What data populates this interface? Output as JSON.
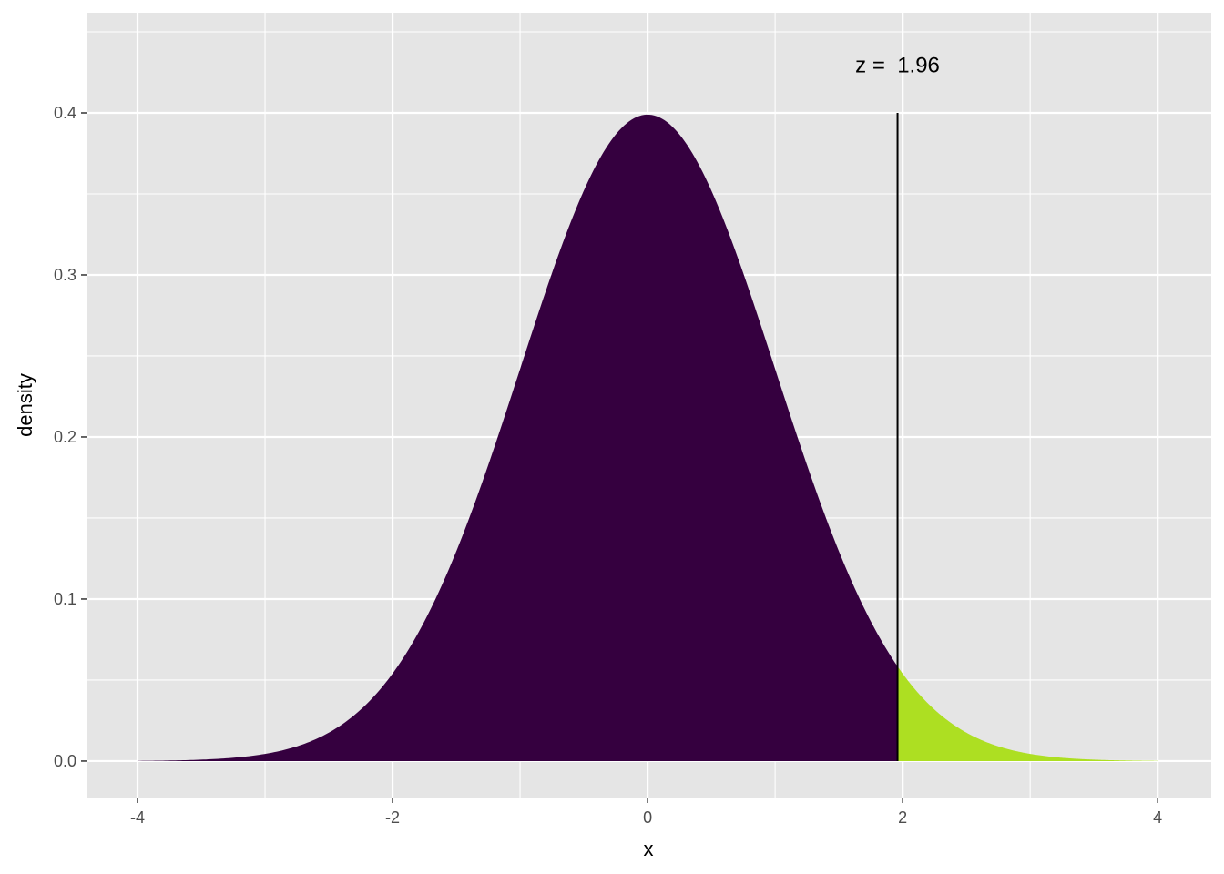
{
  "chart_data": {
    "type": "area",
    "title": "",
    "xlabel": "x",
    "ylabel": "density",
    "xlim": [
      -4.4,
      4.42
    ],
    "ylim": [
      -0.0225,
      0.4618
    ],
    "x_ticks": [
      -4,
      -2,
      0,
      2,
      4
    ],
    "x_tick_labels": [
      "-4",
      "-2",
      "0",
      "2",
      "4"
    ],
    "y_ticks": [
      0.0,
      0.1,
      0.2,
      0.3,
      0.4
    ],
    "y_tick_labels": [
      "0.0",
      "0.1",
      "0.2",
      "0.3",
      "0.4"
    ],
    "grid": true,
    "distribution": "standard normal density",
    "x_range": [
      -4,
      4
    ],
    "series": [
      {
        "region": "below",
        "from": -4,
        "to": 1.96,
        "color": "#35003f"
      },
      {
        "region": "above",
        "from": 1.96,
        "to": 4,
        "color": "#addf22"
      }
    ],
    "vline": {
      "x": 1.96,
      "y_from": 0,
      "y_to": 0.4,
      "color": "#000000"
    },
    "annotation": {
      "text": "z =  1.96",
      "x": 1.96,
      "y": 0.43
    },
    "panel_background": "#e5e5e5",
    "grid_color": "#ffffff"
  }
}
